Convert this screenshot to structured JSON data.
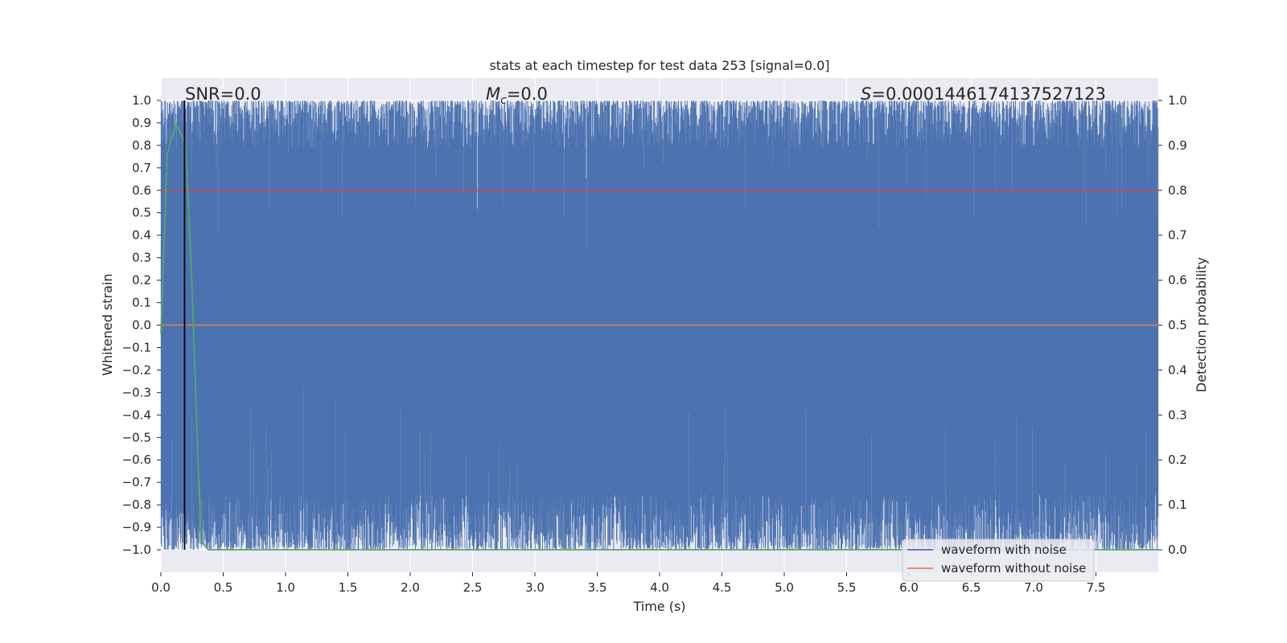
{
  "chart_data": {
    "type": "line",
    "title": "stats at each timestep for test data 253 [signal=0.0]",
    "xlabel": "Time (s)",
    "ylabel": "Whitened strain",
    "y2label": "Detection probability",
    "xlim": [
      0.0,
      8.0
    ],
    "ylim": [
      -1.1,
      1.1
    ],
    "y2lim": [
      -0.05,
      1.05
    ],
    "x_ticks": [
      "0.0",
      "0.5",
      "1.0",
      "1.5",
      "2.0",
      "2.5",
      "3.0",
      "3.5",
      "4.0",
      "4.5",
      "5.0",
      "5.5",
      "6.0",
      "6.5",
      "7.0",
      "7.5"
    ],
    "y_ticks": [
      "1.0",
      "0.9",
      "0.8",
      "0.7",
      "0.6",
      "0.5",
      "0.4",
      "0.3",
      "0.2",
      "0.1",
      "0.0",
      "−0.1",
      "−0.2",
      "−0.3",
      "−0.4",
      "−0.5",
      "−0.6",
      "−0.7",
      "−0.8",
      "−0.9",
      "−1.0"
    ],
    "y2_ticks": [
      "1.0",
      "0.9",
      "0.8",
      "0.7",
      "0.6",
      "0.5",
      "0.4",
      "0.3",
      "0.2",
      "0.1",
      "0.0"
    ],
    "grid": true,
    "legend_position": "lower-right",
    "annotations": {
      "snr": "SNR=0.0",
      "mc_symbol": "M",
      "mc_sub": "c",
      "mc_value": "=0.0",
      "s_symbol": "S",
      "s_value": "=0.0001446174137527123"
    },
    "series": [
      {
        "name": "waveform with noise",
        "color": "#4c72b0",
        "description_note": "dense noise filling range",
        "y_min": -1.0,
        "y_max": 1.0
      },
      {
        "name": "waveform without noise",
        "color": "#dd8452",
        "values_constant": 0.0
      },
      {
        "color": "#55a868",
        "axis": "right",
        "x": [
          0.0,
          0.05,
          0.12,
          0.2,
          0.25,
          0.32,
          0.38,
          8.0
        ],
        "y": [
          0.48,
          0.88,
          0.95,
          0.9,
          0.58,
          0.02,
          0.0,
          0.0
        ]
      }
    ],
    "hlines": [
      {
        "y": 0.8,
        "color": "#c44e52"
      }
    ],
    "vlines": [
      {
        "x": 0.19,
        "color": "#000000"
      }
    ]
  }
}
